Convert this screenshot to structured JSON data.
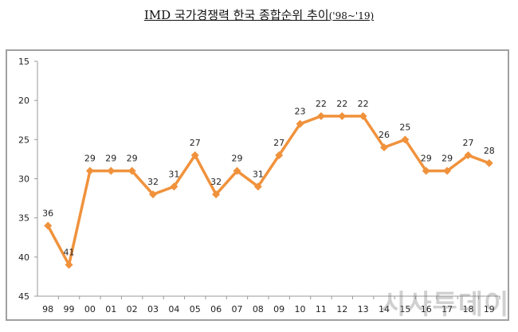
{
  "title": {
    "main": "IMD 국가경쟁력 한국 종합순위 추이",
    "sub": "('98~'19)"
  },
  "watermark": "시사투데이",
  "colors": {
    "line": "#F0923C",
    "grid_axis": "#999999",
    "frame": "#a0a0a0"
  },
  "chart_data": {
    "type": "line",
    "title": "IMD 국가경쟁력 한국 종합순위 추이('98~'19)",
    "xlabel": "",
    "ylabel": "",
    "categories": [
      "98",
      "99",
      "00",
      "01",
      "02",
      "03",
      "04",
      "05",
      "06",
      "07",
      "08",
      "09",
      "10",
      "11",
      "12",
      "13",
      "14",
      "15",
      "16",
      "17",
      "18",
      "19"
    ],
    "series": [
      {
        "values": [
          36,
          41,
          29,
          29,
          29,
          32,
          31,
          27,
          32,
          29,
          31,
          27,
          23,
          22,
          22,
          22,
          26,
          25,
          29,
          29,
          27,
          28
        ]
      }
    ],
    "ylim": [
      15,
      45
    ],
    "y_inverted": true,
    "yticks": [
      15,
      20,
      25,
      30,
      35,
      40,
      45
    ],
    "grid": false,
    "legend": "none"
  }
}
